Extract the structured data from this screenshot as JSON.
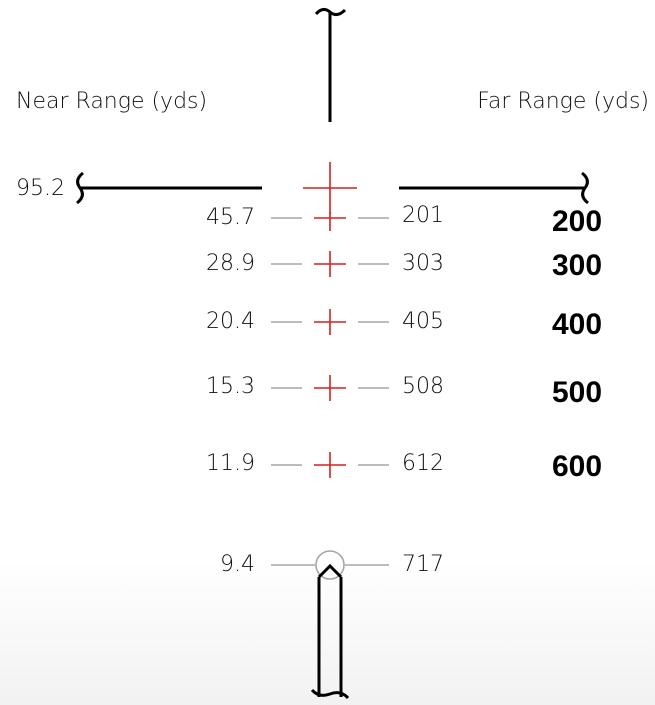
{
  "labels": {
    "near_range": "Near Range (yds)",
    "far_range": "Far Range (yds)",
    "horizon_near": "95.2"
  },
  "marks": [
    {
      "near": "45.7",
      "far": "201",
      "yardage": "200"
    },
    {
      "near": "28.9",
      "far": "303",
      "yardage": "300"
    },
    {
      "near": "20.4",
      "far": "405",
      "yardage": "400"
    },
    {
      "near": "15.3",
      "far": "508",
      "yardage": "500"
    },
    {
      "near": "11.9",
      "far": "612",
      "yardage": "600"
    },
    {
      "near": "9.4",
      "far": "717",
      "yardage": ""
    }
  ],
  "colors": {
    "crosshair": "#d42020",
    "ranging_line": "#a6a6a6",
    "reticle": "#000000"
  }
}
